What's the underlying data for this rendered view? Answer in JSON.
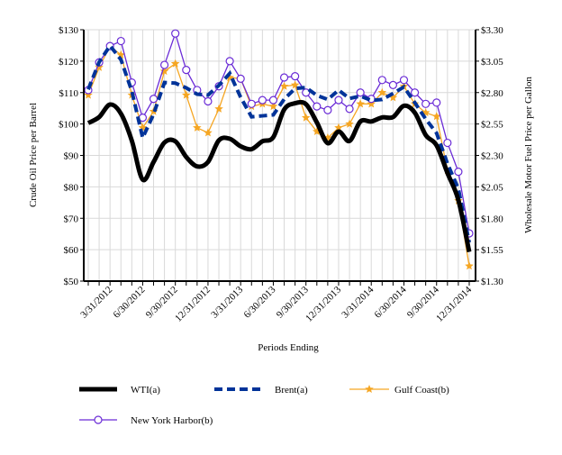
{
  "chart_data": {
    "type": "line",
    "xlabel": "Periods Ending",
    "ylabel": "Crude Oil Price per Barrel",
    "ylabel_right": "Wholesale Motor Fuel Price per Gallon",
    "ylim": [
      50,
      130
    ],
    "ylim_right": [
      1.3,
      3.3
    ],
    "yticks": [
      "$50",
      "$60",
      "$70",
      "$80",
      "$90",
      "$100",
      "$110",
      "$120",
      "$130"
    ],
    "yticks_right": [
      "$1.30",
      "$1.55",
      "$1.80",
      "$2.05",
      "$2.30",
      "$2.55",
      "$2.80",
      "$3.05",
      "$3.30"
    ],
    "x": [
      "1/31/2012",
      "2/29/2012",
      "3/31/2012",
      "4/30/2012",
      "5/31/2012",
      "6/30/2012",
      "7/31/2012",
      "8/31/2012",
      "9/30/2012",
      "10/31/2012",
      "11/30/2012",
      "12/31/2012",
      "1/31/2013",
      "2/28/2013",
      "3/31/2013",
      "4/30/2013",
      "5/31/2013",
      "6/30/2013",
      "7/31/2013",
      "8/31/2013",
      "9/30/2013",
      "10/31/2013",
      "11/30/2013",
      "12/31/2013",
      "1/31/2014",
      "2/28/2014",
      "3/31/2014",
      "4/30/2014",
      "5/31/2014",
      "6/30/2014",
      "7/31/2014",
      "8/31/2014",
      "9/30/2014",
      "10/31/2014",
      "11/30/2014",
      "12/31/2014"
    ],
    "xtick_labels": [
      "3/31/2012",
      "6/30/2012",
      "9/30/2012",
      "12/31/2012",
      "3/31/2013",
      "6/30/2013",
      "9/30/2013",
      "12/31/2013",
      "3/31/2014",
      "6/30/2014",
      "9/30/2014",
      "12/31/2014"
    ],
    "grid": true,
    "legend_position": "bottom",
    "series": [
      {
        "name": "WTI(a)",
        "axis": "left",
        "color": "#000000",
        "style": "solid-thick-smooth",
        "values": [
          100.3,
          102.2,
          106.2,
          103.3,
          94.7,
          82.3,
          87.9,
          94.1,
          94.5,
          89.5,
          86.5,
          87.9,
          94.8,
          95.3,
          92.9,
          92.0,
          94.5,
          95.8,
          104.6,
          106.6,
          106.3,
          100.5,
          93.9,
          97.6,
          94.6,
          100.8,
          100.8,
          102.1,
          102.2,
          105.8,
          103.6,
          96.5,
          93.2,
          84.4,
          75.8,
          59.3
        ]
      },
      {
        "name": "Brent(a)",
        "axis": "left",
        "color": "#003399",
        "style": "dashed",
        "values": [
          111.0,
          119.7,
          124.9,
          120.5,
          110.5,
          95.6,
          103.1,
          113.2,
          113.0,
          111.5,
          109.5,
          109.2,
          112.3,
          116.1,
          108.5,
          102.3,
          102.6,
          102.9,
          107.9,
          111.3,
          111.6,
          109.1,
          107.8,
          110.8,
          108.1,
          108.9,
          107.5,
          107.8,
          109.7,
          111.8,
          106.8,
          101.6,
          97.1,
          87.4,
          79.4,
          62.3
        ]
      },
      {
        "name": "Gulf Coast(b)",
        "axis": "right",
        "color": "#f5a623",
        "marker": "star",
        "values": [
          2.78,
          3.0,
          3.17,
          3.1,
          2.78,
          2.52,
          2.65,
          2.97,
          3.03,
          2.78,
          2.52,
          2.48,
          2.67,
          2.92,
          2.91,
          2.69,
          2.71,
          2.69,
          2.85,
          2.86,
          2.6,
          2.49,
          2.44,
          2.52,
          2.55,
          2.71,
          2.71,
          2.8,
          2.76,
          2.85,
          2.71,
          2.64,
          2.61,
          2.18,
          1.94,
          1.42
        ]
      },
      {
        "name": "New York Harbor(b)",
        "axis": "right",
        "color": "#6a2bd6",
        "marker": "circle",
        "values": [
          2.82,
          3.04,
          3.17,
          3.21,
          2.88,
          2.6,
          2.75,
          3.02,
          3.27,
          2.98,
          2.82,
          2.73,
          2.85,
          3.05,
          2.91,
          2.71,
          2.74,
          2.74,
          2.92,
          2.93,
          2.8,
          2.69,
          2.66,
          2.74,
          2.67,
          2.8,
          2.75,
          2.9,
          2.86,
          2.9,
          2.8,
          2.71,
          2.72,
          2.4,
          2.17,
          1.68
        ]
      }
    ]
  }
}
